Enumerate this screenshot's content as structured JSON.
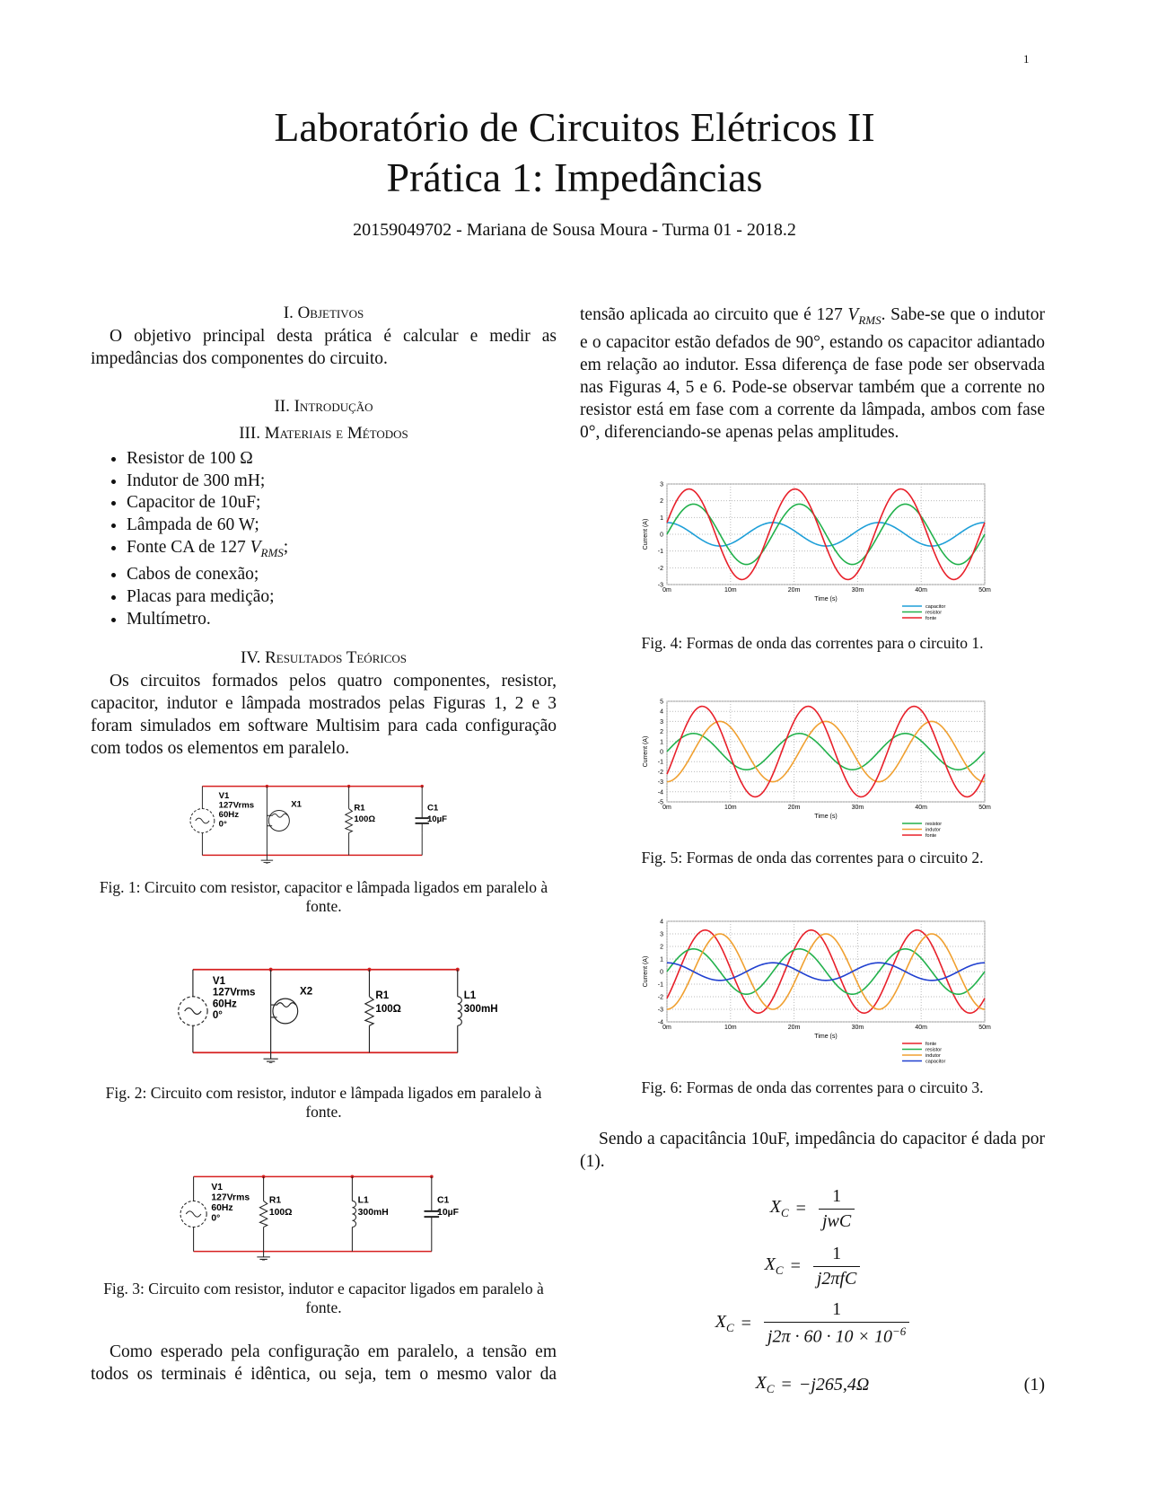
{
  "page_number": "1",
  "header": {
    "title": [
      "Laboratório de Circuitos Elétricos II",
      "Prática 1: Impedâncias"
    ],
    "author": "20159049702 - Mariana de Sousa Moura - Turma 01 - 2018.2"
  },
  "sections": [
    {
      "heading": "I. Objetivos",
      "paragraphs": [
        "O objetivo principal desta prática é calcular e medir as impedâncias dos componentes do circuito."
      ]
    },
    {
      "heading": "II. Introdução"
    },
    {
      "heading": "III. Materiais e Métodos",
      "list": [
        "Resistor de 100 Ω",
        "Indutor de 300 mH;",
        "Capacitor de 10uF;",
        "Lâmpada de 60 W;",
        [
          "Fonte CA de 127 ",
          {
            "math": "V",
            "sub": "RMS"
          },
          ";"
        ],
        "Cabos de conexão;",
        "Placas para medição;",
        "Multímetro."
      ]
    },
    {
      "heading": "IV. Resultados Teóricos",
      "paragraphs": [
        "Os circuitos formados pelos quatro componentes, resistor, capacitor, indutor e lâmpada mostrados pelas Figuras 1, 2 e 3 foram simulados em software Multisim para cada configuração com todos os elementos em paralelo.",
        "Como esperado pela configuração em paralelo, a tensão em todos os terminais é idêntica, ou seja, tem o mesmo valor da",
        [
          "tensão aplicada ao circuito que é 127 ",
          {
            "math": "V",
            "sub": "RMS"
          },
          ". Sabe-se que o indutor e o capacitor estão defados de 90°, estando os capacitor adiantado em relação ao indutor. Essa diferença de fase pode ser observada nas Figuras 4, 5 e 6. Pode-se observar também que a corrente no resistor está em fase com a corrente da lâmpada, ambos com fase 0°, diferenciando-se apenas pelas amplitudes."
        ],
        "Sendo a capacitância 10uF, impedância do capacitor é dada por (1)."
      ]
    }
  ],
  "circuits": [
    {
      "caption": "Fig. 1: Circuito com resistor, capacitor e lâmpada ligados em paralelo à fonte.",
      "source": [
        "V1",
        "127Vrms",
        "60Hz",
        "0°"
      ],
      "components": [
        {
          "type": "lamp",
          "name": "X1"
        },
        {
          "type": "resistor",
          "name": "R1",
          "value": "100Ω"
        },
        {
          "type": "capacitor",
          "name": "C1",
          "value": "10µF"
        }
      ]
    },
    {
      "caption": "Fig. 2: Circuito com resistor, indutor e lâmpada ligados em paralelo à fonte.",
      "source": [
        "V1",
        "127Vrms",
        "60Hz",
        "0°"
      ],
      "components": [
        {
          "type": "lamp",
          "name": "X2"
        },
        {
          "type": "resistor",
          "name": "R1",
          "value": "100Ω"
        },
        {
          "type": "inductor",
          "name": "L1",
          "value": "300mH"
        }
      ]
    },
    {
      "caption": "Fig. 3: Circuito com resistor, indutor e capacitor ligados em paralelo à fonte.",
      "source": [
        "V1",
        "127Vrms",
        "60Hz",
        "0°"
      ],
      "components": [
        {
          "type": "resistor",
          "name": "R1",
          "value": "100Ω"
        },
        {
          "type": "inductor",
          "name": "L1",
          "value": "300mH"
        },
        {
          "type": "capacitor",
          "name": "C1",
          "value": "10µF"
        }
      ]
    }
  ],
  "charts": [
    {
      "type": "line",
      "caption": "Fig. 4: Formas de onda das correntes para o circuito 1.",
      "xlabel": "Time (s)",
      "ylabel": "Current (A)",
      "frequency": 60,
      "xlim": [
        0,
        0.05
      ],
      "xticks": [
        {
          "value": 0,
          "label": "0m"
        },
        {
          "value": 0.01,
          "label": "10m"
        },
        {
          "value": 0.02,
          "label": "20m"
        },
        {
          "value": 0.03,
          "label": "30m"
        },
        {
          "value": 0.04,
          "label": "40m"
        },
        {
          "value": 0.05,
          "label": "50m"
        }
      ],
      "ylim": [
        -3,
        3
      ],
      "yticks": [
        -3,
        -2,
        -1,
        0,
        1,
        2,
        3
      ],
      "grid": true,
      "series": [
        {
          "name": "capacitor",
          "color": "#1e9fd8",
          "amplitude": 0.7,
          "phase": 90
        },
        {
          "name": "resistor",
          "color": "#22b14c",
          "amplitude": 1.8,
          "phase": 0
        },
        {
          "name": "fonte",
          "color": "#e8202a",
          "amplitude": 2.7,
          "phase": 15
        }
      ]
    },
    {
      "type": "line",
      "caption": "Fig. 5: Formas de onda das correntes para o circuito 2.",
      "xlabel": "Time (s)",
      "ylabel": "Current (A)",
      "frequency": 60,
      "xlim": [
        0,
        0.05
      ],
      "xticks": [
        {
          "value": 0,
          "label": "0m"
        },
        {
          "value": 0.01,
          "label": "10m"
        },
        {
          "value": 0.02,
          "label": "20m"
        },
        {
          "value": 0.03,
          "label": "30m"
        },
        {
          "value": 0.04,
          "label": "40m"
        },
        {
          "value": 0.05,
          "label": "50m"
        }
      ],
      "ylim": [
        -5,
        5
      ],
      "yticks": [
        -5,
        -4,
        -3,
        -2,
        -1,
        0,
        1,
        2,
        3,
        4,
        5
      ],
      "grid": true,
      "series": [
        {
          "name": "resistor",
          "color": "#22b14c",
          "amplitude": 1.8,
          "phase": 0
        },
        {
          "name": "indutor",
          "color": "#f0a030",
          "amplitude": 3,
          "phase": -90
        },
        {
          "name": "fonte",
          "color": "#e8202a",
          "amplitude": 4.5,
          "phase": -30
        }
      ]
    },
    {
      "type": "line",
      "caption": "Fig. 6: Formas de onda das correntes para o circuito 3.",
      "xlabel": "Time (s)",
      "ylabel": "Current (A)",
      "frequency": 60,
      "xlim": [
        0,
        0.05
      ],
      "xticks": [
        {
          "value": 0,
          "label": "0m"
        },
        {
          "value": 0.01,
          "label": "10m"
        },
        {
          "value": 0.02,
          "label": "20m"
        },
        {
          "value": 0.03,
          "label": "30m"
        },
        {
          "value": 0.04,
          "label": "40m"
        },
        {
          "value": 0.05,
          "label": "50m"
        }
      ],
      "ylim": [
        -4,
        4
      ],
      "yticks": [
        -4,
        -3,
        -2,
        -1,
        0,
        1,
        2,
        3,
        4
      ],
      "grid": true,
      "series": [
        {
          "name": "fonte",
          "color": "#e8202a",
          "amplitude": 3.3,
          "phase": -40
        },
        {
          "name": "resistor",
          "color": "#22b14c",
          "amplitude": 1.8,
          "phase": 0
        },
        {
          "name": "indutor",
          "color": "#f0a030",
          "amplitude": 3,
          "phase": -90
        },
        {
          "name": "capacitor",
          "color": "#2040d0",
          "amplitude": 0.7,
          "phase": 90
        }
      ]
    }
  ],
  "equations": [
    {
      "lhs": "X",
      "lhs_sub": "C",
      "rel": "=",
      "num": "1",
      "den": "jwC"
    },
    {
      "lhs": "X",
      "lhs_sub": "C",
      "rel": "=",
      "num": "1",
      "den": "j2πfC"
    },
    {
      "lhs": "X",
      "lhs_sub": "C",
      "rel": "=",
      "num": "1",
      "den": "j2π · 60 · 10 × 10",
      "den_sup": "−6"
    },
    {
      "lhs": "X",
      "lhs_sub": "C",
      "rel": "=",
      "rhs": "−j265,4Ω",
      "number": "(1)"
    }
  ]
}
